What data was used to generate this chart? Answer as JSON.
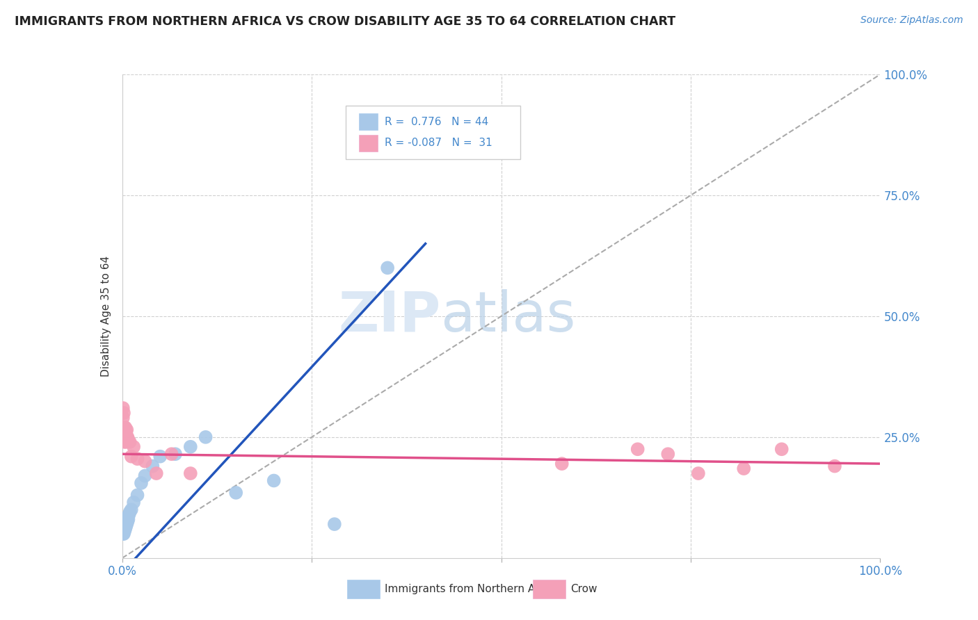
{
  "title": "IMMIGRANTS FROM NORTHERN AFRICA VS CROW DISABILITY AGE 35 TO 64 CORRELATION CHART",
  "source_text": "Source: ZipAtlas.com",
  "ylabel": "Disability Age 35 to 64",
  "blue_R": 0.776,
  "blue_N": 44,
  "pink_R": -0.087,
  "pink_N": 31,
  "blue_color": "#a8c8e8",
  "pink_color": "#f4a0b8",
  "blue_line_color": "#2255bb",
  "pink_line_color": "#e0508a",
  "grid_color": "#d0d0d0",
  "blue_points_x": [
    0.001,
    0.001,
    0.001,
    0.001,
    0.001,
    0.002,
    0.002,
    0.002,
    0.002,
    0.002,
    0.002,
    0.003,
    0.003,
    0.003,
    0.003,
    0.003,
    0.004,
    0.004,
    0.004,
    0.004,
    0.005,
    0.005,
    0.005,
    0.006,
    0.006,
    0.007,
    0.007,
    0.008,
    0.009,
    0.01,
    0.012,
    0.015,
    0.02,
    0.025,
    0.03,
    0.04,
    0.05,
    0.07,
    0.09,
    0.11,
    0.15,
    0.2,
    0.28,
    0.35
  ],
  "blue_points_y": [
    0.05,
    0.055,
    0.06,
    0.065,
    0.07,
    0.05,
    0.06,
    0.065,
    0.07,
    0.075,
    0.08,
    0.055,
    0.06,
    0.065,
    0.07,
    0.075,
    0.06,
    0.065,
    0.07,
    0.08,
    0.065,
    0.07,
    0.075,
    0.07,
    0.08,
    0.075,
    0.085,
    0.08,
    0.09,
    0.095,
    0.1,
    0.115,
    0.13,
    0.155,
    0.17,
    0.19,
    0.21,
    0.215,
    0.23,
    0.25,
    0.135,
    0.16,
    0.07,
    0.6
  ],
  "pink_points_x": [
    0.001,
    0.001,
    0.001,
    0.002,
    0.002,
    0.002,
    0.003,
    0.003,
    0.003,
    0.004,
    0.004,
    0.005,
    0.005,
    0.006,
    0.007,
    0.008,
    0.01,
    0.012,
    0.015,
    0.02,
    0.03,
    0.045,
    0.065,
    0.09,
    0.58,
    0.68,
    0.72,
    0.76,
    0.82,
    0.87,
    0.94
  ],
  "pink_points_y": [
    0.29,
    0.31,
    0.25,
    0.26,
    0.3,
    0.265,
    0.27,
    0.24,
    0.26,
    0.25,
    0.27,
    0.26,
    0.24,
    0.265,
    0.25,
    0.245,
    0.24,
    0.21,
    0.23,
    0.205,
    0.2,
    0.175,
    0.215,
    0.175,
    0.195,
    0.225,
    0.215,
    0.175,
    0.185,
    0.225,
    0.19
  ],
  "xlim": [
    0.0,
    1.0
  ],
  "ylim": [
    0.0,
    1.0
  ]
}
